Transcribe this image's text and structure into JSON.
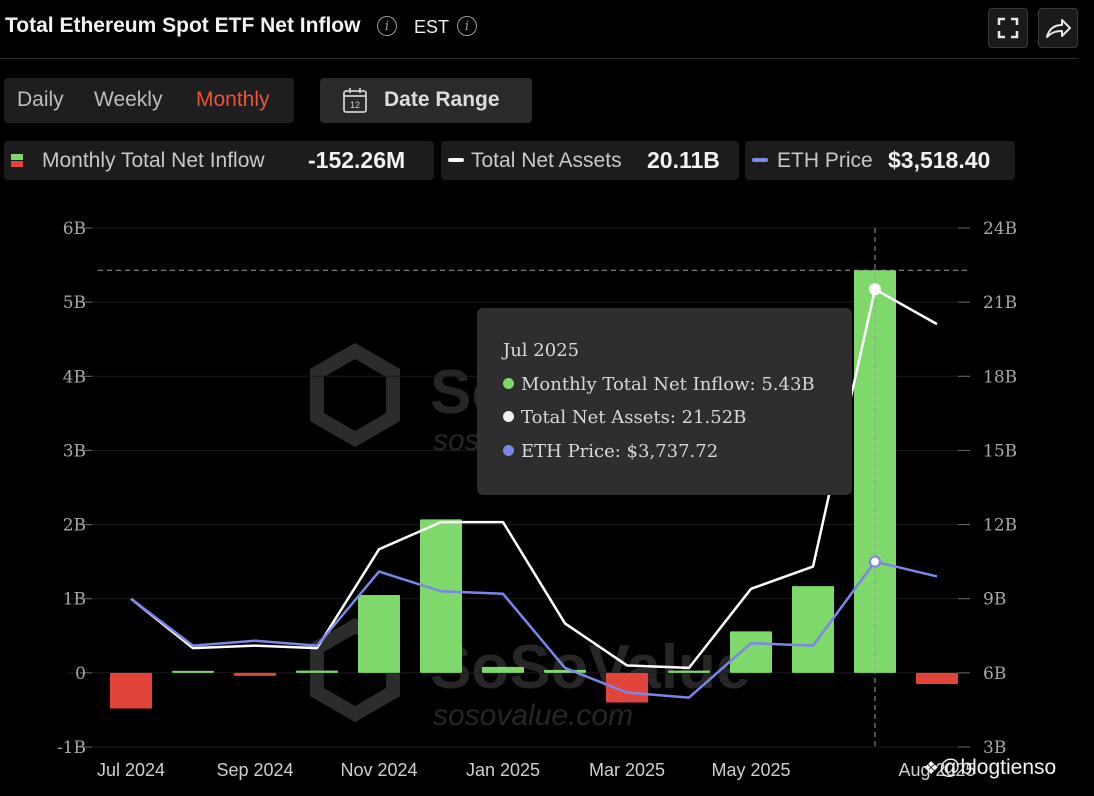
{
  "header": {
    "title": "Total Ethereum Spot ETF Net Inflow",
    "timezone": "EST",
    "fullscreen_icon": "fullscreen-icon",
    "share_icon": "share-icon"
  },
  "period_tabs": [
    {
      "label": "Daily",
      "active": false
    },
    {
      "label": "Weekly",
      "active": false
    },
    {
      "label": "Monthly",
      "active": true
    }
  ],
  "date_range": {
    "label": "Date Range",
    "icon": "calendar-icon",
    "calendar_day": "12"
  },
  "legend": [
    {
      "name": "Monthly Total Net Inflow",
      "value": "-152.26M",
      "color": "#7ed96a"
    },
    {
      "name": "Total Net Assets",
      "value": "20.11B",
      "color": "#ffffff"
    },
    {
      "name": "ETH Price",
      "value": "$3,518.40",
      "color": "#7b86e8"
    }
  ],
  "colors": {
    "positive": "#7ed96a",
    "negative": "#e0443b",
    "assets_line": "#ffffff",
    "price_line": "#7b86e8",
    "accent": "#e8533a"
  },
  "chart_data": {
    "type": "bar",
    "categories": [
      "Jul 2024",
      "Aug 2024",
      "Sep 2024",
      "Oct 2024",
      "Nov 2024",
      "Dec 2024",
      "Jan 2025",
      "Feb 2025",
      "Mar 2025",
      "Apr 2025",
      "May 2025",
      "Jun 2025",
      "Jul 2025",
      "Aug 2025"
    ],
    "x_tick_labels": [
      "Jul 2024",
      "Sep 2024",
      "Nov 2024",
      "Jan 2025",
      "Mar 2025",
      "May 2025",
      "Aug 2025"
    ],
    "series": [
      {
        "name": "Monthly Total Net Inflow",
        "type": "bar",
        "axis": "left",
        "values": [
          -0.48,
          0.01,
          -0.04,
          0.03,
          1.05,
          2.07,
          0.08,
          0.04,
          -0.4,
          0.03,
          0.56,
          1.17,
          5.43,
          -0.15
        ]
      },
      {
        "name": "Total Net Assets",
        "type": "line",
        "axis": "right",
        "values": [
          9.0,
          7.0,
          7.1,
          7.0,
          11.0,
          12.1,
          12.1,
          8.0,
          6.3,
          6.2,
          9.4,
          10.3,
          21.52,
          20.11
        ]
      },
      {
        "name": "ETH Price",
        "type": "line",
        "axis": "right",
        "values": [
          9.0,
          7.1,
          7.3,
          7.1,
          10.1,
          9.3,
          9.2,
          6.2,
          5.2,
          5.0,
          7.2,
          7.1,
          10.5,
          9.9
        ]
      }
    ],
    "y_left": {
      "ticks": [
        "6B",
        "5B",
        "4B",
        "3B",
        "2B",
        "1B",
        "0",
        "-1B"
      ],
      "range": [
        -1,
        6
      ]
    },
    "y_right": {
      "ticks": [
        "24B",
        "21B",
        "18B",
        "15B",
        "12B",
        "9B",
        "6B",
        "3B"
      ],
      "range": [
        3,
        24
      ]
    },
    "highlight_index": 12,
    "tooltip": {
      "title": "Jul 2025",
      "rows": [
        "Monthly Total Net Inflow: 5.43B",
        "Total Net Assets: 21.52B",
        "ETH Price: $3,737.72"
      ]
    },
    "watermark": {
      "brand": "SoSoValue",
      "url": "sosovalue.com"
    }
  },
  "credit": "@blogtienso"
}
